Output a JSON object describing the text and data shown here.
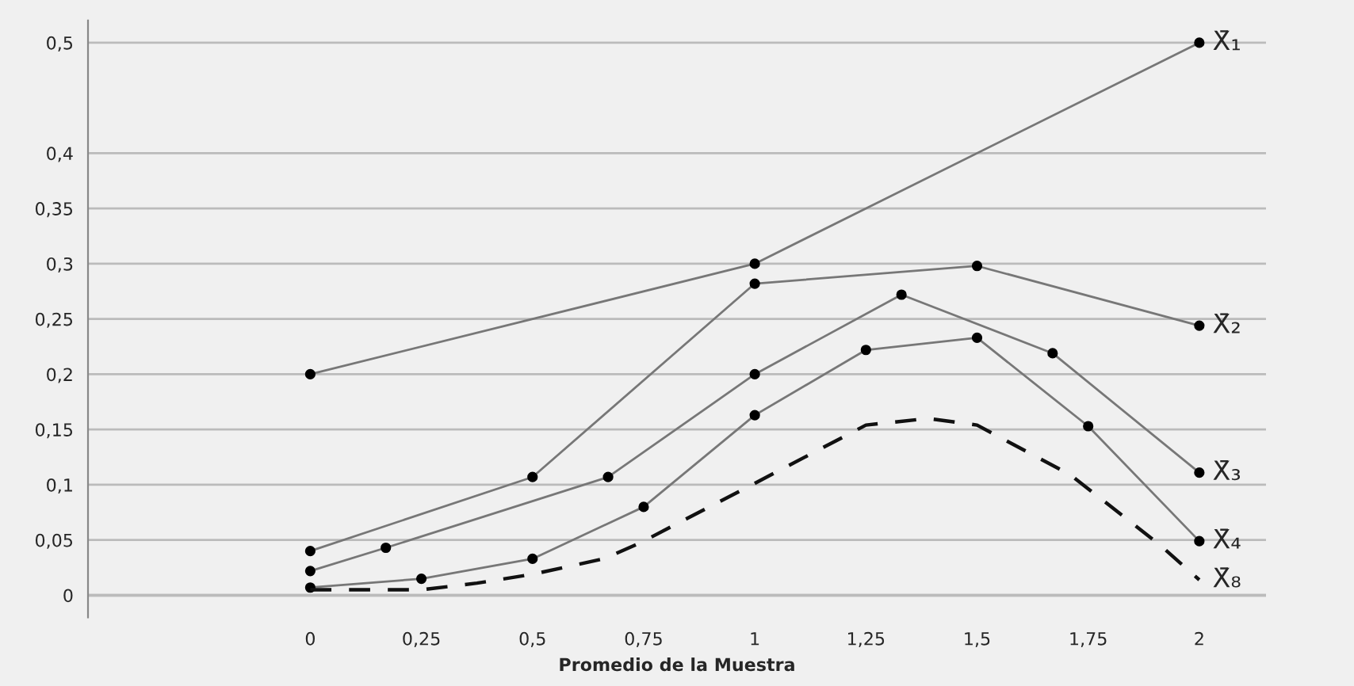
{
  "chart_data": {
    "type": "line",
    "xlabel": "Promedio de la Muestra",
    "xlim": [
      -0.5,
      2.15
    ],
    "ylim": [
      -0.02,
      0.52
    ],
    "xticks": [
      0,
      {
        "value": 0.25,
        "label": "0,25"
      },
      {
        "value": 0.5,
        "label": "0,5"
      },
      {
        "value": 0.75,
        "label": "0,75"
      },
      1,
      {
        "value": 1.25,
        "label": "1,25"
      },
      {
        "value": 1.5,
        "label": "1,5"
      },
      {
        "value": 1.75,
        "label": "1,75"
      },
      2
    ],
    "yticks": [
      0,
      {
        "value": 0.05,
        "label": "0,05"
      },
      {
        "value": 0.1,
        "label": "0,1"
      },
      {
        "value": 0.15,
        "label": "0,15"
      },
      {
        "value": 0.2,
        "label": "0,2"
      },
      {
        "value": 0.25,
        "label": "0,25"
      },
      {
        "value": 0.3,
        "label": "0,3"
      },
      {
        "value": 0.35,
        "label": "0,35"
      },
      {
        "value": 0.4,
        "label": "0,4"
      },
      {
        "value": 0.5,
        "label": "0,5"
      }
    ],
    "grid": "y",
    "legend": false,
    "marker": "circle",
    "line_style": "solid",
    "series": [
      {
        "name": "X̄₁",
        "color": "#777777",
        "x": [
          0,
          1,
          2
        ],
        "values": [
          0.2,
          0.3,
          0.5
        ]
      },
      {
        "name": "X̄₂",
        "color": "#777777",
        "x": [
          0,
          0.5,
          1,
          1.5,
          2
        ],
        "values": [
          0.04,
          0.107,
          0.282,
          0.298,
          0.244
        ]
      },
      {
        "name": "X̄₃",
        "color": "#777777",
        "x": [
          0,
          0.17,
          0.67,
          1,
          1.33,
          1.67,
          2
        ],
        "values": [
          0.022,
          0.043,
          0.107,
          0.2,
          0.272,
          0.219,
          0.111
        ]
      },
      {
        "name": "X̄₄",
        "color": "#777777",
        "x": [
          0,
          0.25,
          0.5,
          0.75,
          1,
          1.25,
          1.5,
          1.75,
          2
        ],
        "values": [
          0.007,
          0.015,
          0.033,
          0.08,
          0.163,
          0.222,
          0.233,
          0.153,
          0.049
        ]
      },
      {
        "name": "X̄₈",
        "color": "#111111",
        "marker": "none",
        "line_style": "dashed",
        "x": [
          0,
          0.25,
          0.375,
          0.5,
          0.66,
          0.74,
          0.97,
          1.25,
          1.39,
          1.5,
          1.71,
          1.91,
          2
        ],
        "values": [
          0.005,
          0.005,
          0.011,
          0.019,
          0.033,
          0.047,
          0.095,
          0.154,
          0.16,
          0.154,
          0.109,
          0.046,
          0.014
        ]
      }
    ]
  }
}
